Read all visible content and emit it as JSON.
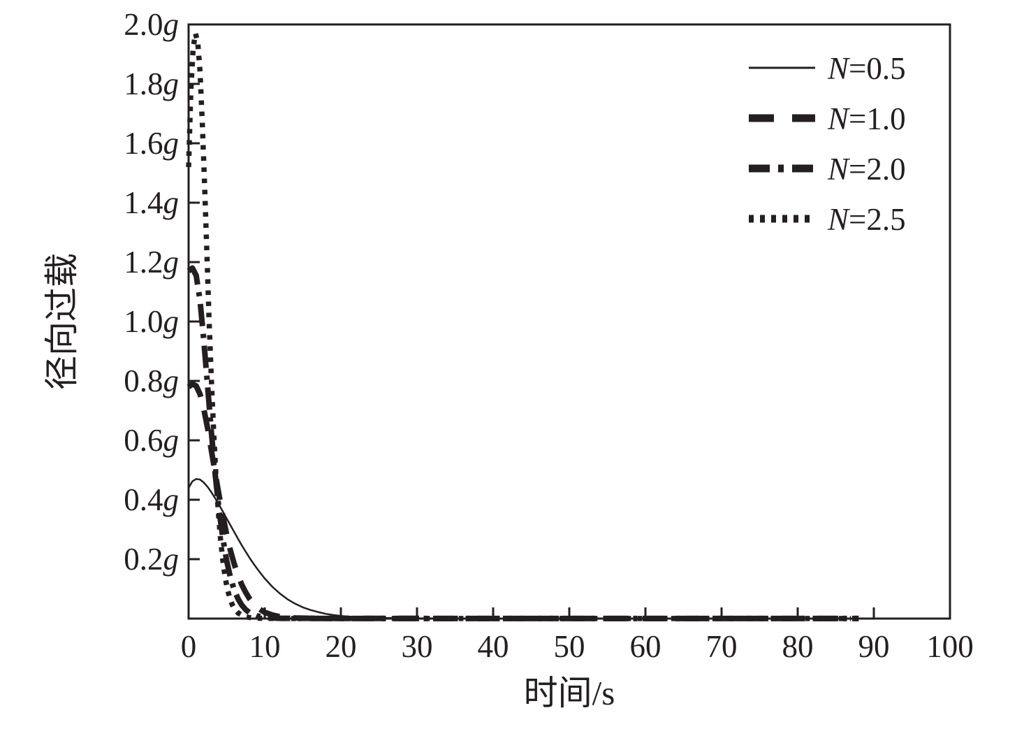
{
  "chart_data": {
    "type": "line",
    "title": "",
    "xlabel": "时间/s",
    "ylabel": "径向过载",
    "xlim": [
      0,
      100
    ],
    "ylim": [
      0,
      2.0
    ],
    "grid": false,
    "legend_position": "top-right",
    "line_color": "#231f20",
    "x_ticks": [
      0,
      10,
      20,
      30,
      40,
      50,
      60,
      70,
      80,
      90,
      100
    ],
    "x_tick_labels": [
      "0",
      "10",
      "20",
      "30",
      "40",
      "50",
      "60",
      "70",
      "80",
      "90",
      "100"
    ],
    "y_ticks": [
      0.2,
      0.4,
      0.6,
      0.8,
      1.0,
      1.2,
      1.4,
      1.6,
      1.8,
      2.0
    ],
    "y_tick_labels": [
      "0.2g",
      "0.4g",
      "0.6g",
      "0.8g",
      "1.0g",
      "1.2g",
      "1.4g",
      "1.6g",
      "1.8g",
      "2.0g"
    ],
    "series": [
      {
        "name": "N=0.5",
        "style": "solid",
        "line_width": 2.5,
        "x": [
          0,
          0.5,
          1,
          1.5,
          2,
          2.5,
          3,
          3.5,
          4,
          4.5,
          5,
          5.5,
          6,
          6.5,
          7,
          7.5,
          8,
          8.5,
          9,
          9.5,
          10,
          11,
          12,
          13,
          14,
          15,
          16,
          17,
          18,
          19,
          20,
          22,
          24,
          26,
          28,
          30,
          35,
          40,
          50,
          60,
          70,
          80,
          90,
          100
        ],
        "y": [
          0.44,
          0.462,
          0.47,
          0.468,
          0.458,
          0.443,
          0.425,
          0.405,
          0.383,
          0.36,
          0.337,
          0.314,
          0.291,
          0.268,
          0.246,
          0.225,
          0.205,
          0.186,
          0.168,
          0.151,
          0.135,
          0.107,
          0.084,
          0.065,
          0.05,
          0.038,
          0.029,
          0.022,
          0.016,
          0.012,
          0.009,
          0.005,
          0.003,
          0.002,
          0.0015,
          0.001,
          0.0008,
          0.0006,
          0.0005,
          0.0004,
          0.0004,
          0.0003,
          0.0003,
          0.0003
        ]
      },
      {
        "name": "N=1.0",
        "style": "dashed",
        "line_width": 8,
        "x": [
          0,
          0.5,
          1,
          1.5,
          2,
          2.5,
          3,
          3.5,
          4,
          4.5,
          5,
          5.5,
          6,
          6.5,
          7,
          7.5,
          8,
          8.5,
          9,
          9.5,
          10,
          11,
          12,
          13,
          14,
          16,
          18,
          20,
          25,
          30,
          40,
          50,
          60,
          70,
          80,
          88
        ],
        "y": [
          0.78,
          0.79,
          0.783,
          0.755,
          0.705,
          0.64,
          0.565,
          0.49,
          0.415,
          0.345,
          0.283,
          0.229,
          0.183,
          0.145,
          0.113,
          0.088,
          0.067,
          0.051,
          0.038,
          0.029,
          0.021,
          0.012,
          0.006,
          0.0035,
          0.002,
          0.001,
          0.0007,
          0.0005,
          0.0004,
          0.0004,
          0.0003,
          0.0003,
          0.0003,
          0.0003,
          0.0003,
          0.0003
        ]
      },
      {
        "name": "N=2.0",
        "style": "dashdot",
        "line_width": 8,
        "x": [
          0,
          0.5,
          1,
          1.5,
          2,
          2.5,
          3,
          3.5,
          4,
          4.5,
          5,
          5.5,
          6,
          6.5,
          7,
          7.5,
          8,
          9,
          10,
          11,
          12,
          14,
          16,
          20,
          25,
          30,
          40,
          50,
          60,
          70,
          80,
          88
        ],
        "y": [
          1.17,
          1.18,
          1.155,
          1.07,
          0.935,
          0.78,
          0.625,
          0.485,
          0.365,
          0.27,
          0.195,
          0.138,
          0.096,
          0.066,
          0.045,
          0.03,
          0.02,
          0.009,
          0.004,
          0.002,
          0.001,
          0.0006,
          0.0004,
          0.0003,
          0.0003,
          0.0003,
          0.0003,
          0.0003,
          0.0003,
          0.0003,
          0.0003,
          0.0003
        ]
      },
      {
        "name": "N=2.5",
        "style": "dotted",
        "line_width": 7.5,
        "x": [
          0,
          0.3,
          0.6,
          0.9,
          1.2,
          1.5,
          1.8,
          2.1,
          2.4,
          2.7,
          3,
          3.3,
          3.6,
          3.9,
          4.2,
          4.5,
          4.8,
          5.1,
          5.4,
          5.7,
          6,
          6.5,
          7,
          7.5,
          8,
          9,
          10,
          12,
          15,
          20,
          30,
          40,
          50,
          60,
          70,
          80,
          87
        ],
        "y": [
          1.52,
          1.78,
          1.92,
          1.97,
          1.94,
          1.84,
          1.67,
          1.46,
          1.23,
          1.0,
          0.8,
          0.625,
          0.48,
          0.36,
          0.265,
          0.193,
          0.139,
          0.099,
          0.07,
          0.049,
          0.034,
          0.019,
          0.011,
          0.006,
          0.0035,
          0.0012,
          0.0006,
          0.0004,
          0.0003,
          0.0003,
          0.0003,
          0.0003,
          0.0003,
          0.0003,
          0.0003,
          0.0003,
          0.0003
        ]
      }
    ],
    "legend": {
      "entries": [
        "N=0.5",
        "N=1.0",
        "N=2.0",
        "N=2.5"
      ]
    }
  }
}
